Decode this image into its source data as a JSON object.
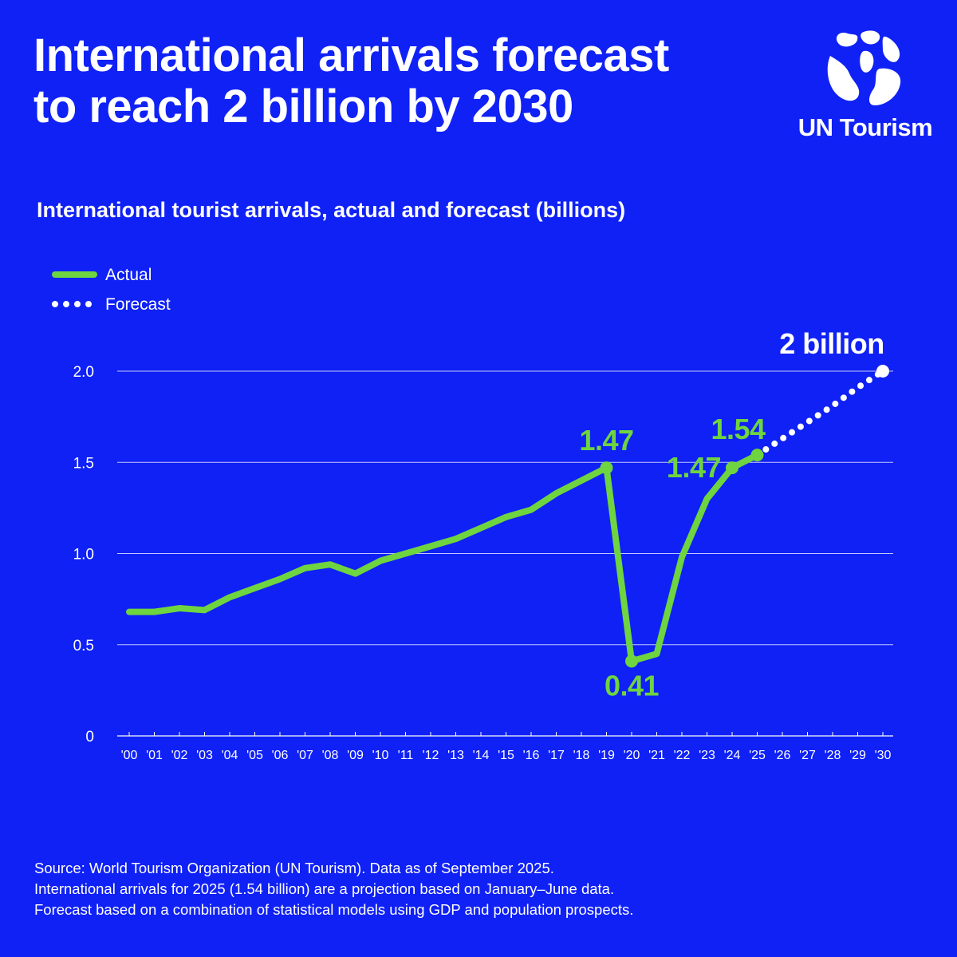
{
  "headline": {
    "line1": "International arrivals forecast",
    "line2": "to reach 2 billion by 2030"
  },
  "brand": {
    "name": "UN Tourism",
    "icon": "un-tourism-globe-icon"
  },
  "colors": {
    "background": "#0f21f5",
    "actual": "#6ed43f",
    "forecast": "#ffffff",
    "text": "#ffffff"
  },
  "chart_data": {
    "type": "line",
    "title": "International tourist arrivals, actual and forecast (billions)",
    "xlabel": "",
    "ylabel": "",
    "ylim": [
      0,
      2.0
    ],
    "yticks": [
      "0",
      "0.5",
      "1.0",
      "1.5",
      "2.0"
    ],
    "ytick_values": [
      0,
      0.5,
      1.0,
      1.5,
      2.0
    ],
    "categories": [
      "'00",
      "'01",
      "'02",
      "'03",
      "'04",
      "'05",
      "'06",
      "'07",
      "'08",
      "'09",
      "'10",
      "'11",
      "'12",
      "'13",
      "'14",
      "'15",
      "'16",
      "'17",
      "'18",
      "'19",
      "'20",
      "'21",
      "'22",
      "'23",
      "'24",
      "'25",
      "'26",
      "'27",
      "'28",
      "'29",
      "'30"
    ],
    "legend": {
      "position": "top-left",
      "entries": [
        "Actual",
        "Forecast"
      ]
    },
    "series": [
      {
        "name": "Actual",
        "style": "solid",
        "values": [
          0.68,
          0.68,
          0.7,
          0.69,
          0.76,
          0.81,
          0.86,
          0.92,
          0.94,
          0.89,
          0.96,
          1.0,
          1.04,
          1.08,
          1.14,
          1.2,
          1.24,
          1.33,
          1.4,
          1.47,
          0.41,
          0.45,
          0.98,
          1.3,
          1.47,
          1.54,
          null,
          null,
          null,
          null,
          null
        ]
      },
      {
        "name": "Forecast",
        "style": "dotted",
        "values": [
          null,
          null,
          null,
          null,
          null,
          null,
          null,
          null,
          null,
          null,
          null,
          null,
          null,
          null,
          null,
          null,
          null,
          null,
          null,
          null,
          null,
          null,
          null,
          null,
          null,
          1.54,
          1.63,
          1.72,
          1.81,
          1.91,
          2.0
        ]
      }
    ],
    "annotations": [
      {
        "index": 19,
        "text": "1.47",
        "color": "#6ed43f",
        "marker": true,
        "placement": "above"
      },
      {
        "index": 20,
        "text": "0.41",
        "color": "#6ed43f",
        "marker": true,
        "placement": "below"
      },
      {
        "index": 24,
        "text": "1.47",
        "color": "#6ed43f",
        "marker": true,
        "placement": "left"
      },
      {
        "index": 25,
        "text": "1.54",
        "color": "#6ed43f",
        "marker": true,
        "placement": "above"
      },
      {
        "index": 30,
        "text": "2 billion",
        "color": "#ffffff",
        "marker": true,
        "placement": "above"
      }
    ]
  },
  "footnotes": [
    "Source: World Tourism Organization (UN Tourism). Data as of September 2025.",
    "International arrivals for 2025 (1.54 billion) are a projection based on January–June data.",
    "Forecast based on a combination of statistical models using GDP and population prospects."
  ]
}
